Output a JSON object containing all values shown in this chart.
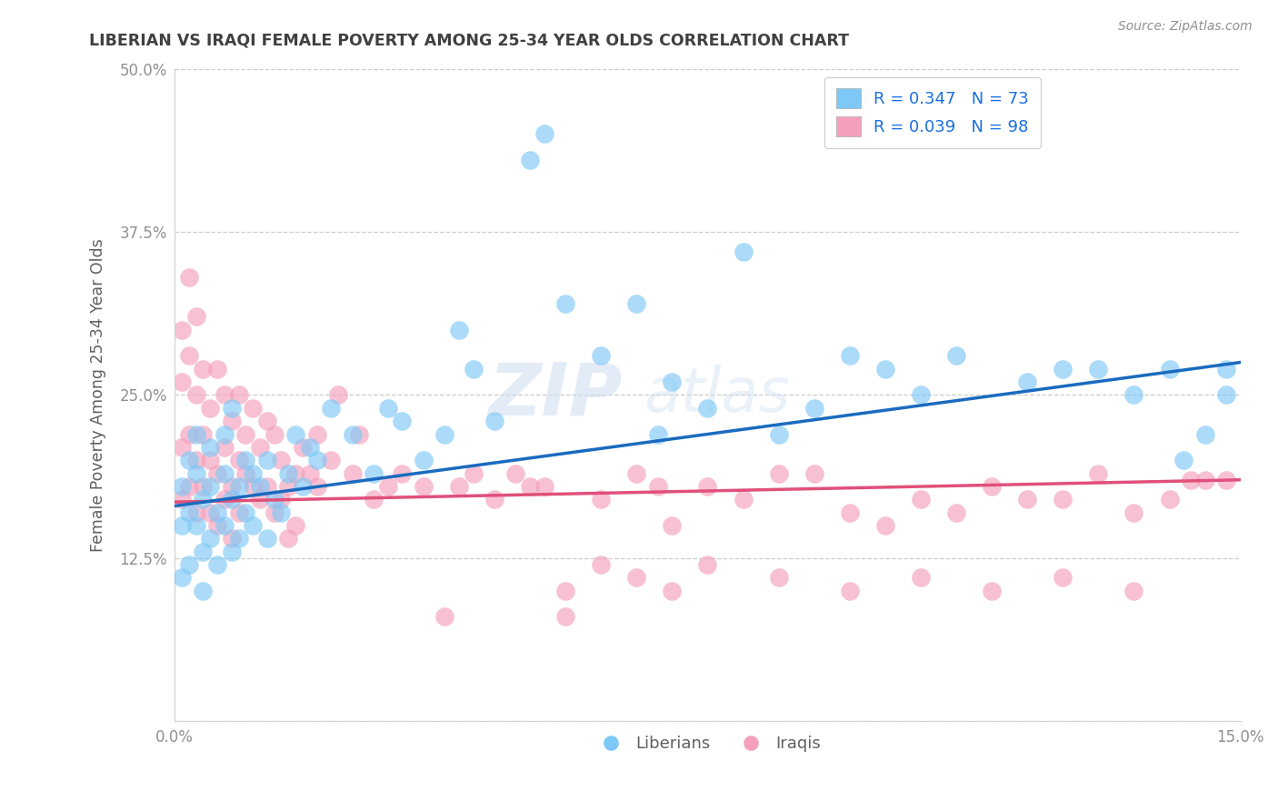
{
  "title": "LIBERIAN VS IRAQI FEMALE POVERTY AMONG 25-34 YEAR OLDS CORRELATION CHART",
  "source": "Source: ZipAtlas.com",
  "ylabel": "Female Poverty Among 25-34 Year Olds",
  "xlim": [
    0.0,
    0.15
  ],
  "ylim": [
    0.0,
    0.5
  ],
  "xticks": [
    0.0,
    0.05,
    0.1,
    0.15
  ],
  "xticklabels": [
    "0.0%",
    "",
    "",
    "15.0%"
  ],
  "yticks": [
    0.0,
    0.125,
    0.25,
    0.375,
    0.5
  ],
  "yticklabels": [
    "",
    "12.5%",
    "25.0%",
    "37.5%",
    "50.0%"
  ],
  "legend_liberian_label": "R = 0.347   N = 73",
  "legend_iraqi_label": "R = 0.039   N = 98",
  "bottom_legend_liberian": "Liberians",
  "bottom_legend_iraqi": "Iraqis",
  "liberian_color": "#7ec8f7",
  "iraqi_color": "#f4a0bc",
  "liberian_line_color": "#1a6bbf",
  "iraqi_line_color": "#e0507a",
  "watermark_zip": "ZIP",
  "watermark_atlas": "atlas",
  "background_color": "#ffffff",
  "grid_color": "#c8c8c8",
  "title_color": "#404040",
  "axis_label_color": "#606060",
  "tick_label_color": "#909090",
  "source_color": "#909090",
  "legend_text_color": "#1a70e0",
  "lib_line_y0": 0.165,
  "lib_line_y1": 0.275,
  "irq_line_y0": 0.168,
  "irq_line_y1": 0.185,
  "liberian_x": [
    0.001,
    0.001,
    0.001,
    0.002,
    0.002,
    0.002,
    0.003,
    0.003,
    0.003,
    0.004,
    0.004,
    0.004,
    0.005,
    0.005,
    0.005,
    0.006,
    0.006,
    0.007,
    0.007,
    0.007,
    0.008,
    0.008,
    0.008,
    0.009,
    0.009,
    0.01,
    0.01,
    0.011,
    0.011,
    0.012,
    0.013,
    0.013,
    0.014,
    0.015,
    0.016,
    0.017,
    0.018,
    0.019,
    0.02,
    0.022,
    0.025,
    0.028,
    0.03,
    0.032,
    0.035,
    0.038,
    0.04,
    0.042,
    0.045,
    0.05,
    0.052,
    0.055,
    0.06,
    0.065,
    0.068,
    0.07,
    0.075,
    0.08,
    0.085,
    0.09,
    0.095,
    0.1,
    0.105,
    0.11,
    0.12,
    0.125,
    0.13,
    0.135,
    0.14,
    0.142,
    0.145,
    0.148,
    0.148
  ],
  "liberian_y": [
    0.18,
    0.15,
    0.11,
    0.2,
    0.16,
    0.12,
    0.19,
    0.15,
    0.22,
    0.17,
    0.13,
    0.1,
    0.18,
    0.14,
    0.21,
    0.16,
    0.12,
    0.19,
    0.15,
    0.22,
    0.17,
    0.13,
    0.24,
    0.18,
    0.14,
    0.2,
    0.16,
    0.19,
    0.15,
    0.18,
    0.2,
    0.14,
    0.17,
    0.16,
    0.19,
    0.22,
    0.18,
    0.21,
    0.2,
    0.24,
    0.22,
    0.19,
    0.24,
    0.23,
    0.2,
    0.22,
    0.3,
    0.27,
    0.23,
    0.43,
    0.45,
    0.32,
    0.28,
    0.32,
    0.22,
    0.26,
    0.24,
    0.36,
    0.22,
    0.24,
    0.28,
    0.27,
    0.25,
    0.28,
    0.26,
    0.27,
    0.27,
    0.25,
    0.27,
    0.2,
    0.22,
    0.27,
    0.25
  ],
  "iraqi_x": [
    0.001,
    0.001,
    0.001,
    0.001,
    0.002,
    0.002,
    0.002,
    0.002,
    0.003,
    0.003,
    0.003,
    0.003,
    0.004,
    0.004,
    0.004,
    0.005,
    0.005,
    0.005,
    0.006,
    0.006,
    0.006,
    0.007,
    0.007,
    0.007,
    0.008,
    0.008,
    0.008,
    0.009,
    0.009,
    0.009,
    0.01,
    0.01,
    0.011,
    0.011,
    0.012,
    0.012,
    0.013,
    0.013,
    0.014,
    0.014,
    0.015,
    0.015,
    0.016,
    0.016,
    0.017,
    0.017,
    0.018,
    0.019,
    0.02,
    0.02,
    0.022,
    0.023,
    0.025,
    0.026,
    0.028,
    0.03,
    0.032,
    0.035,
    0.038,
    0.04,
    0.042,
    0.045,
    0.048,
    0.05,
    0.052,
    0.055,
    0.06,
    0.065,
    0.068,
    0.07,
    0.075,
    0.08,
    0.085,
    0.09,
    0.095,
    0.1,
    0.105,
    0.11,
    0.115,
    0.12,
    0.125,
    0.13,
    0.135,
    0.14,
    0.143,
    0.145,
    0.148,
    0.055,
    0.06,
    0.065,
    0.07,
    0.075,
    0.085,
    0.095,
    0.105,
    0.115,
    0.125,
    0.135
  ],
  "iraqi_y": [
    0.26,
    0.21,
    0.17,
    0.3,
    0.22,
    0.18,
    0.28,
    0.34,
    0.2,
    0.25,
    0.16,
    0.31,
    0.22,
    0.18,
    0.27,
    0.2,
    0.16,
    0.24,
    0.19,
    0.15,
    0.27,
    0.21,
    0.17,
    0.25,
    0.18,
    0.14,
    0.23,
    0.2,
    0.16,
    0.25,
    0.19,
    0.22,
    0.18,
    0.24,
    0.17,
    0.21,
    0.18,
    0.23,
    0.16,
    0.22,
    0.17,
    0.2,
    0.18,
    0.14,
    0.19,
    0.15,
    0.21,
    0.19,
    0.18,
    0.22,
    0.2,
    0.25,
    0.19,
    0.22,
    0.17,
    0.18,
    0.19,
    0.18,
    0.08,
    0.18,
    0.19,
    0.17,
    0.19,
    0.18,
    0.18,
    0.08,
    0.17,
    0.19,
    0.18,
    0.15,
    0.18,
    0.17,
    0.19,
    0.19,
    0.16,
    0.15,
    0.17,
    0.16,
    0.18,
    0.17,
    0.17,
    0.19,
    0.16,
    0.17,
    0.185,
    0.185,
    0.185,
    0.1,
    0.12,
    0.11,
    0.1,
    0.12,
    0.11,
    0.1,
    0.11,
    0.1,
    0.11,
    0.1
  ]
}
